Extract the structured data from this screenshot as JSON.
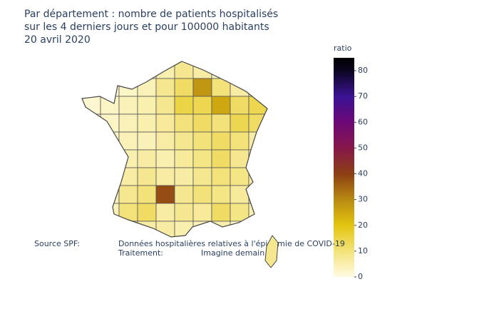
{
  "chart_data": {
    "type": "choropleth",
    "title": [
      "Par département : nombre de patients hospitalisés",
      "sur les 4 derniers jours et pour 100000 habitants",
      "20 avril 2020"
    ],
    "colorbar_title": "ratio",
    "annotations": [
      "Source SPF:",
      "Données hospitalières relatives à l'épidémie de COVID-19",
      "Traitement:",
      "Imagine demain"
    ],
    "values": [
      2,
      2,
      2,
      2,
      5,
      8,
      6,
      3,
      2,
      2,
      2,
      2,
      3,
      4,
      8,
      12,
      28,
      10,
      6,
      2,
      2,
      3,
      4,
      5,
      8,
      15,
      14,
      25,
      12,
      14,
      2,
      3,
      4,
      5,
      7,
      10,
      12,
      10,
      14,
      12,
      2,
      3,
      4,
      4,
      6,
      8,
      10,
      12,
      10,
      6,
      2,
      3,
      5,
      6,
      5,
      7,
      9,
      12,
      8,
      4,
      2,
      3,
      6,
      8,
      6,
      6,
      8,
      10,
      9,
      6,
      2,
      4,
      8,
      10,
      38,
      8,
      10,
      9,
      7,
      4,
      2,
      4,
      10,
      12,
      6,
      8,
      7,
      12,
      9,
      5,
      2,
      3,
      4,
      6,
      6,
      5,
      4,
      5,
      3,
      2,
      8
    ],
    "clim": [
      0,
      85
    ],
    "cticks": [
      0,
      10,
      20,
      30,
      40,
      50,
      60,
      70,
      80
    ],
    "colorscale": [
      [
        0,
        "#fffbe3"
      ],
      [
        10,
        "#f3e27a"
      ],
      [
        20,
        "#e3c510"
      ],
      [
        30,
        "#b88a12"
      ],
      [
        40,
        "#8b3f13"
      ],
      [
        50,
        "#86174a"
      ],
      [
        60,
        "#6d0877"
      ],
      [
        70,
        "#3a1393"
      ],
      [
        80,
        "#0c0520"
      ],
      [
        85,
        "#000000"
      ]
    ]
  }
}
